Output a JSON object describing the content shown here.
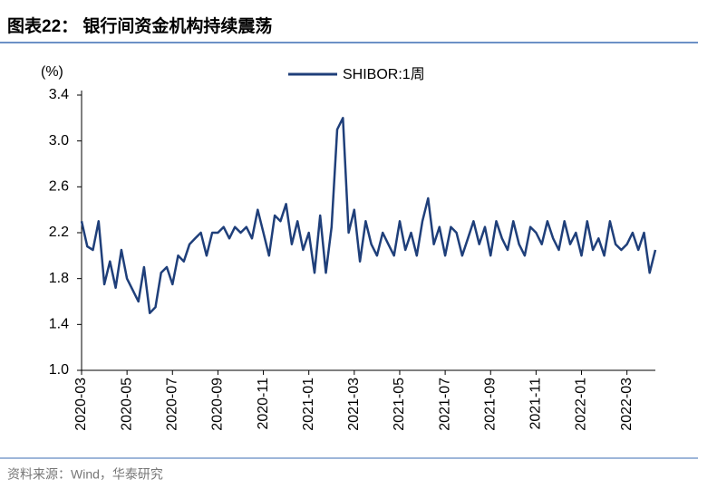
{
  "chart_data": {
    "type": "line",
    "title": "图表22： 银行间资金机构持续震荡",
    "y_label": "(%)",
    "source": "资料来源：Wind，华泰研究",
    "categories": [
      "2020-03",
      null,
      null,
      null,
      null,
      null,
      null,
      null,
      "2020-05",
      null,
      null,
      null,
      null,
      null,
      null,
      null,
      "2020-07",
      null,
      null,
      null,
      null,
      null,
      null,
      null,
      "2020-09",
      null,
      null,
      null,
      null,
      null,
      null,
      null,
      "2020-11",
      null,
      null,
      null,
      null,
      null,
      null,
      null,
      "2021-01",
      null,
      null,
      null,
      null,
      null,
      null,
      null,
      "2021-03",
      null,
      null,
      null,
      null,
      null,
      null,
      null,
      "2021-05",
      null,
      null,
      null,
      null,
      null,
      null,
      null,
      "2021-07",
      null,
      null,
      null,
      null,
      null,
      null,
      null,
      "2021-09",
      null,
      null,
      null,
      null,
      null,
      null,
      null,
      "2021-11",
      null,
      null,
      null,
      null,
      null,
      null,
      null,
      "2022-01",
      null,
      null,
      null,
      null,
      null,
      null,
      null,
      "2022-03",
      null,
      null,
      null,
      null,
      null
    ],
    "series": [
      {
        "name": "SHIBOR:1周",
        "color": "#1f3f7a",
        "values": [
          2.3,
          2.08,
          2.05,
          2.3,
          1.75,
          1.95,
          1.72,
          2.05,
          1.8,
          1.7,
          1.6,
          1.9,
          1.5,
          1.55,
          1.85,
          1.9,
          1.75,
          2.0,
          1.95,
          2.1,
          2.15,
          2.2,
          2.0,
          2.2,
          2.2,
          2.25,
          2.15,
          2.25,
          2.2,
          2.25,
          2.15,
          2.4,
          2.2,
          2.0,
          2.35,
          2.3,
          2.45,
          2.1,
          2.3,
          2.05,
          2.2,
          1.85,
          2.35,
          1.85,
          2.25,
          3.1,
          3.2,
          2.2,
          2.4,
          1.95,
          2.3,
          2.1,
          2.0,
          2.2,
          2.1,
          2.0,
          2.3,
          2.05,
          2.2,
          2.0,
          2.3,
          2.5,
          2.1,
          2.25,
          2.0,
          2.25,
          2.2,
          2.0,
          2.15,
          2.3,
          2.1,
          2.25,
          2.0,
          2.3,
          2.15,
          2.05,
          2.3,
          2.1,
          2.0,
          2.25,
          2.2,
          2.1,
          2.3,
          2.15,
          2.05,
          2.3,
          2.1,
          2.2,
          2.0,
          2.3,
          2.05,
          2.15,
          2.0,
          2.3,
          2.1,
          2.05,
          2.1,
          2.2,
          2.05,
          2.2,
          1.85,
          2.05
        ]
      }
    ],
    "ylim": [
      1.0,
      3.4
    ],
    "yticks": [
      {
        "value": 1.0,
        "label": "1.0"
      },
      1.4,
      1.8,
      2.2,
      2.6,
      {
        "value": 3.0,
        "label": "3.0"
      },
      3.4
    ],
    "legend": "top"
  }
}
